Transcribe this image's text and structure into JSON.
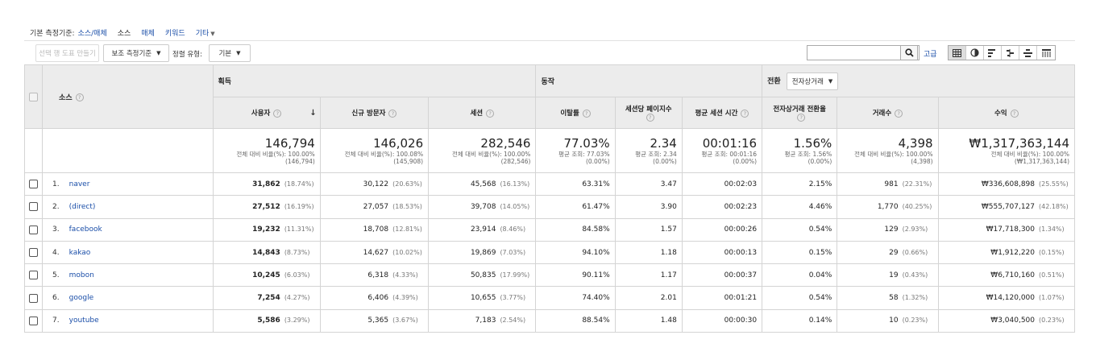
{
  "dimension_bar": {
    "label": "기본 측정기준:",
    "options": [
      "소스/매체",
      "소스",
      "매체",
      "키워드",
      "기타"
    ],
    "active": "소스"
  },
  "toolbar": {
    "create_chart": "선택 행 도표 만들기",
    "secondary_dim": "보조 측정기준",
    "sort_label": "정렬 유형:",
    "sort_value": "기본",
    "search_placeholder": "",
    "advanced": "고급",
    "view_icons": [
      "table-view-icon",
      "pie-view-icon",
      "bar-view-icon",
      "comparison-view-icon",
      "term-cloud-icon",
      "pivot-view-icon"
    ]
  },
  "table": {
    "dimension_header": "소스",
    "groups": {
      "acquisition": "획득",
      "behavior": "동작",
      "conversion": "전환",
      "conversion_select": "전자상거래"
    },
    "metrics": [
      "사용자",
      "신규 방문자",
      "세션",
      "이탈률",
      "세션당 페이지수",
      "평균 세션 시간",
      "전자상거래 전환율",
      "거래수",
      "수익"
    ],
    "totals": [
      {
        "value": "146,794",
        "sub1": "전체 대비 비율(%): 100.00%",
        "sub2": "(146,794)"
      },
      {
        "value": "146,026",
        "sub1": "전체 대비 비율(%): 100.08%",
        "sub2": "(145,908)"
      },
      {
        "value": "282,546",
        "sub1": "전체 대비 비율(%): 100.00%",
        "sub2": "(282,546)"
      },
      {
        "value": "77.03%",
        "sub1": "평균 조회: 77.03%",
        "sub2": "(0.00%)"
      },
      {
        "value": "2.34",
        "sub1": "평균 조회: 2.34",
        "sub2": "(0.00%)"
      },
      {
        "value": "00:01:16",
        "sub1": "평균 조회: 00:01:16",
        "sub2": "(0.00%)"
      },
      {
        "value": "1.56%",
        "sub1": "평균 조회: 1.56%",
        "sub2": "(0.00%)"
      },
      {
        "value": "4,398",
        "sub1": "전체 대비 비율(%): 100.00%",
        "sub2": "(4,398)"
      },
      {
        "value": "₩1,317,363,144",
        "sub1": "전체 대비 비율(%): 100.00%",
        "sub2": "(₩1,317,363,144)"
      }
    ],
    "rows": [
      {
        "n": "1.",
        "source": "naver",
        "users": "31,862",
        "users_pct": "(18.74%)",
        "new": "30,122",
        "new_pct": "(20.63%)",
        "sessions": "45,568",
        "sessions_pct": "(16.13%)",
        "bounce": "63.31%",
        "pps": "3.47",
        "dur": "00:02:03",
        "conv": "2.15%",
        "tx": "981",
        "tx_pct": "(22.31%)",
        "rev": "₩336,608,898",
        "rev_pct": "(25.55%)"
      },
      {
        "n": "2.",
        "source": "(direct)",
        "users": "27,512",
        "users_pct": "(16.19%)",
        "new": "27,057",
        "new_pct": "(18.53%)",
        "sessions": "39,708",
        "sessions_pct": "(14.05%)",
        "bounce": "61.47%",
        "pps": "3.90",
        "dur": "00:02:23",
        "conv": "4.46%",
        "tx": "1,770",
        "tx_pct": "(40.25%)",
        "rev": "₩555,707,127",
        "rev_pct": "(42.18%)"
      },
      {
        "n": "3.",
        "source": "facebook",
        "users": "19,232",
        "users_pct": "(11.31%)",
        "new": "18,708",
        "new_pct": "(12.81%)",
        "sessions": "23,914",
        "sessions_pct": "(8.46%)",
        "bounce": "84.58%",
        "pps": "1.57",
        "dur": "00:00:26",
        "conv": "0.54%",
        "tx": "129",
        "tx_pct": "(2.93%)",
        "rev": "₩17,718,300",
        "rev_pct": "(1.34%)"
      },
      {
        "n": "4.",
        "source": "kakao",
        "users": "14,843",
        "users_pct": "(8.73%)",
        "new": "14,627",
        "new_pct": "(10.02%)",
        "sessions": "19,869",
        "sessions_pct": "(7.03%)",
        "bounce": "94.10%",
        "pps": "1.18",
        "dur": "00:00:13",
        "conv": "0.15%",
        "tx": "29",
        "tx_pct": "(0.66%)",
        "rev": "₩1,912,220",
        "rev_pct": "(0.15%)"
      },
      {
        "n": "5.",
        "source": "mobon",
        "users": "10,245",
        "users_pct": "(6.03%)",
        "new": "6,318",
        "new_pct": "(4.33%)",
        "sessions": "50,835",
        "sessions_pct": "(17.99%)",
        "bounce": "90.11%",
        "pps": "1.17",
        "dur": "00:00:37",
        "conv": "0.04%",
        "tx": "19",
        "tx_pct": "(0.43%)",
        "rev": "₩6,710,160",
        "rev_pct": "(0.51%)"
      },
      {
        "n": "6.",
        "source": "google",
        "users": "7,254",
        "users_pct": "(4.27%)",
        "new": "6,406",
        "new_pct": "(4.39%)",
        "sessions": "10,655",
        "sessions_pct": "(3.77%)",
        "bounce": "74.40%",
        "pps": "2.01",
        "dur": "00:01:21",
        "conv": "0.54%",
        "tx": "58",
        "tx_pct": "(1.32%)",
        "rev": "₩14,120,000",
        "rev_pct": "(1.07%)"
      },
      {
        "n": "7.",
        "source": "youtube",
        "users": "5,586",
        "users_pct": "(3.29%)",
        "new": "5,365",
        "new_pct": "(3.67%)",
        "sessions": "7,183",
        "sessions_pct": "(2.54%)",
        "bounce": "88.54%",
        "pps": "1.48",
        "dur": "00:00:30",
        "conv": "0.14%",
        "tx": "10",
        "tx_pct": "(0.23%)",
        "rev": "₩3,040,500",
        "rev_pct": "(0.23%)"
      }
    ]
  }
}
